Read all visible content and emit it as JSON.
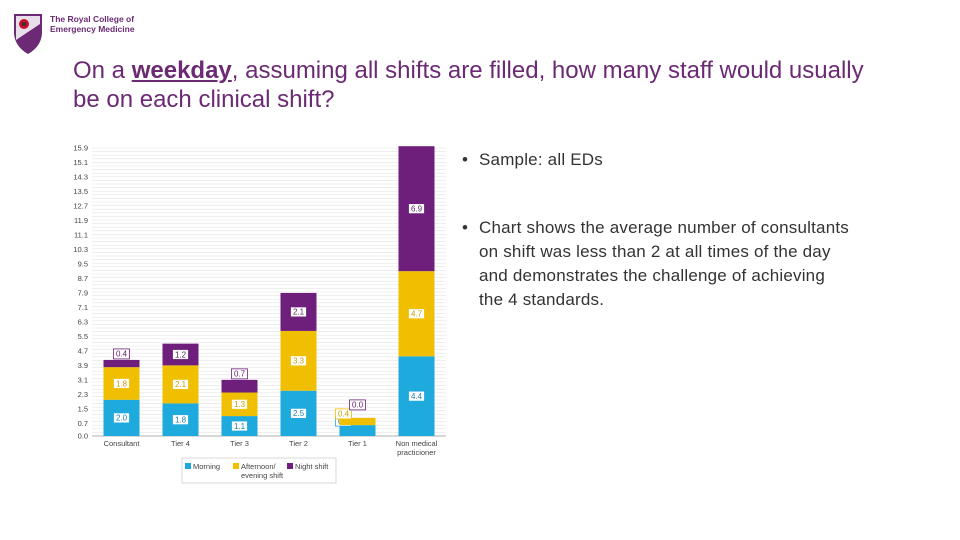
{
  "logo": {
    "line1": "The Royal College of",
    "line2": "Emergency Medicine"
  },
  "heading": {
    "pre": "On a ",
    "emphasis": "weekday",
    "post": ", assuming all shifts are filled, how many staff would usually be on each clinical shift?"
  },
  "bullets": [
    {
      "text": "Sample: all EDs"
    },
    {
      "text": "Chart shows the average number of consultants on shift was less than 2 at all times of the day and demonstrates the challenge of achieving the 4 standards."
    }
  ],
  "chart_data": {
    "type": "bar",
    "stacked": true,
    "categories": [
      "Consultant",
      "Tier 4",
      "Tier 3",
      "Tier 2",
      "Tier 1",
      "Non medical practicioner"
    ],
    "series": [
      {
        "name": "Morning",
        "color": "#1eaadc",
        "values": [
          2.0,
          1.8,
          1.1,
          2.5,
          0.6,
          4.4
        ]
      },
      {
        "name": "Afternoon/ evening shift",
        "color": "#f0c000",
        "values": [
          1.8,
          2.1,
          1.3,
          3.3,
          0.4,
          4.7
        ]
      },
      {
        "name": "Night shift",
        "color": "#6e1f7c",
        "values": [
          0.4,
          1.2,
          0.7,
          2.1,
          0.0,
          6.9
        ]
      }
    ],
    "y_ticks": [
      "0.0",
      "0.7",
      "1.5",
      "2.3",
      "3.1",
      "3.9",
      "4.7",
      "5.5",
      "6.3",
      "7.1",
      "7.9",
      "8.7",
      "9.5",
      "10.3",
      "11.1",
      "11.9",
      "12.7",
      "13.5",
      "14.3",
      "15.1",
      "15.9"
    ],
    "ylim": [
      0,
      15.9
    ],
    "grid": true,
    "legend_position": "bottom"
  }
}
